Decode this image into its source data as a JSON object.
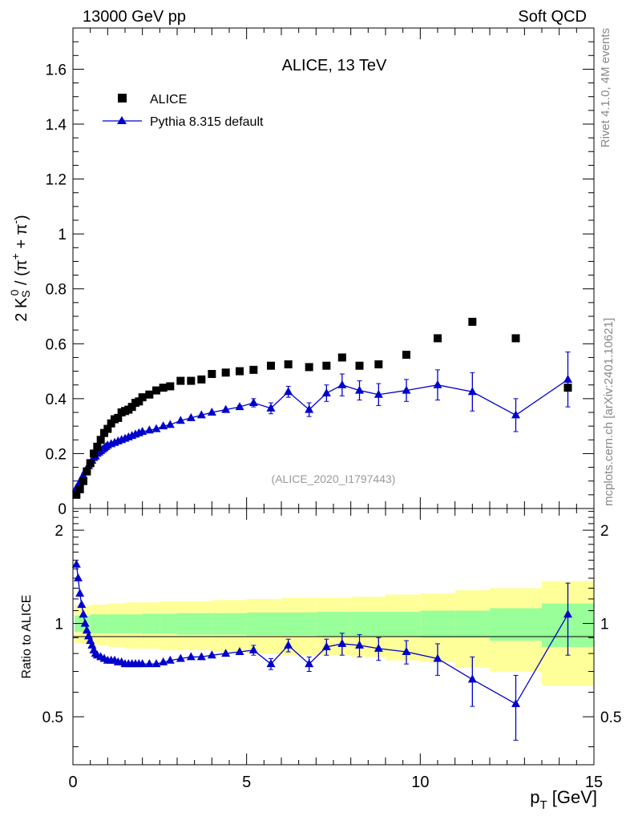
{
  "header": {
    "energy": "13000 GeV pp",
    "process": "Soft QCD"
  },
  "side_labels": {
    "rivet": "Rivet 4.1.0,  4M events",
    "mcplots": "mcplots.cern.ch [arXiv:2401.10621]"
  },
  "colors": {
    "data": "#000000",
    "mc": "#0000cc",
    "band_inner": "#99ff99",
    "band_outer": "#ffff99",
    "ref_label": "#999999"
  },
  "chart_data": [
    {
      "type": "scatter",
      "panel": "main",
      "title": "ALICE, 13 TeV",
      "ylabel": "2 K_S^0 / (π^+ + π^-)",
      "ylabel_parts": {
        "num": "2 K",
        "sub": "S",
        "sup": "0",
        "mid": " / (π",
        "pi_plus": "+",
        "plus": " + π",
        "pi_minus": "-",
        "close": ")"
      },
      "analysis_label": "(ALICE_2020_I1797443)",
      "xlim": [
        0,
        15
      ],
      "ylim": [
        0,
        1.75
      ],
      "y_ticks": [
        0,
        0.2,
        0.4,
        0.6,
        0.8,
        1,
        1.2,
        1.4,
        1.6
      ],
      "y_tick_labels": [
        "0",
        "0.2",
        "0.4",
        "0.6",
        "0.8",
        "1",
        "1.2",
        "1.4",
        "1.6"
      ],
      "legend": {
        "position": "top-left",
        "entries": [
          {
            "label": "ALICE",
            "marker": "square"
          },
          {
            "label": "Pythia 8.315 default",
            "marker": "triangle-line"
          }
        ]
      },
      "series": [
        {
          "name": "ALICE",
          "x": [
            0.1,
            0.2,
            0.3,
            0.4,
            0.5,
            0.6,
            0.7,
            0.8,
            0.9,
            1.0,
            1.1,
            1.2,
            1.3,
            1.4,
            1.5,
            1.6,
            1.7,
            1.8,
            1.9,
            2.0,
            2.2,
            2.4,
            2.6,
            2.8,
            3.1,
            3.4,
            3.7,
            4.0,
            4.4,
            4.8,
            5.2,
            5.7,
            6.2,
            6.8,
            7.3,
            7.75,
            8.25,
            8.8,
            9.6,
            10.5,
            11.5,
            12.75,
            14.25
          ],
          "y": [
            0.05,
            0.07,
            0.1,
            0.135,
            0.165,
            0.2,
            0.225,
            0.25,
            0.275,
            0.29,
            0.31,
            0.325,
            0.33,
            0.35,
            0.355,
            0.36,
            0.37,
            0.385,
            0.39,
            0.405,
            0.415,
            0.43,
            0.44,
            0.445,
            0.465,
            0.465,
            0.47,
            0.49,
            0.495,
            0.5,
            0.505,
            0.52,
            0.525,
            0.515,
            0.52,
            0.55,
            0.52,
            0.525,
            0.56,
            0.62,
            0.68,
            0.62,
            0.44
          ]
        },
        {
          "name": "Pythia 8.315 default",
          "x": [
            0.1,
            0.15,
            0.2,
            0.25,
            0.3,
            0.35,
            0.4,
            0.45,
            0.5,
            0.55,
            0.6,
            0.65,
            0.7,
            0.75,
            0.8,
            0.85,
            0.9,
            0.95,
            1.0,
            1.1,
            1.2,
            1.3,
            1.4,
            1.5,
            1.6,
            1.7,
            1.8,
            1.9,
            2.0,
            2.2,
            2.4,
            2.6,
            2.8,
            3.1,
            3.4,
            3.7,
            4.0,
            4.4,
            4.8,
            5.2,
            5.7,
            6.2,
            6.8,
            7.3,
            7.75,
            8.25,
            8.8,
            9.6,
            10.5,
            11.5,
            12.75,
            14.25
          ],
          "y": [
            0.075,
            0.085,
            0.095,
            0.11,
            0.12,
            0.135,
            0.145,
            0.155,
            0.165,
            0.175,
            0.185,
            0.19,
            0.2,
            0.205,
            0.21,
            0.215,
            0.22,
            0.225,
            0.23,
            0.235,
            0.24,
            0.245,
            0.25,
            0.255,
            0.26,
            0.265,
            0.27,
            0.275,
            0.28,
            0.285,
            0.29,
            0.3,
            0.305,
            0.32,
            0.33,
            0.34,
            0.35,
            0.36,
            0.37,
            0.385,
            0.365,
            0.425,
            0.36,
            0.42,
            0.45,
            0.43,
            0.415,
            0.43,
            0.45,
            0.425,
            0.34,
            0.47
          ],
          "err": [
            0,
            0,
            0,
            0,
            0,
            0,
            0,
            0,
            0,
            0,
            0,
            0,
            0,
            0,
            0,
            0,
            0,
            0,
            0,
            0,
            0,
            0,
            0,
            0,
            0,
            0,
            0,
            0,
            0,
            0,
            0,
            0,
            0,
            0,
            0,
            0,
            0,
            0,
            0.005,
            0.015,
            0.02,
            0.02,
            0.025,
            0.03,
            0.04,
            0.035,
            0.04,
            0.04,
            0.055,
            0.07,
            0.06,
            0.1
          ]
        }
      ]
    },
    {
      "type": "line",
      "panel": "ratio",
      "ylabel": "Ratio to ALICE",
      "xlabel": "p_T [GeV]",
      "xlabel_parts": {
        "p": "p",
        "sub": "T",
        "unit": " [GeV]"
      },
      "xlim": [
        0,
        15
      ],
      "ylim": [
        0.35,
        2.35
      ],
      "x_ticks": [
        0,
        5,
        10,
        15
      ],
      "x_tick_labels": [
        "0",
        "5",
        "10",
        "15"
      ],
      "y_ticks": [
        0.5,
        1,
        2
      ],
      "y_tick_labels": [
        "0.5",
        "1",
        "2"
      ],
      "bands": {
        "edges": [
          0.05,
          0.5,
          1.0,
          1.5,
          2.0,
          2.5,
          3.0,
          4.0,
          5.0,
          6.0,
          7.0,
          8.0,
          9.0,
          10.0,
          11.0,
          12.0,
          13.5,
          15.0
        ],
        "inner": [
          0.06,
          0.07,
          0.07,
          0.07,
          0.075,
          0.075,
          0.08,
          0.08,
          0.085,
          0.085,
          0.09,
          0.09,
          0.09,
          0.1,
          0.1,
          0.12,
          0.16
        ],
        "outer": [
          0.14,
          0.15,
          0.16,
          0.17,
          0.17,
          0.18,
          0.18,
          0.19,
          0.2,
          0.21,
          0.21,
          0.22,
          0.24,
          0.25,
          0.28,
          0.3,
          0.37
        ]
      },
      "series": [
        {
          "name": "Pythia 8.315 / ALICE",
          "x": [
            0.1,
            0.15,
            0.2,
            0.25,
            0.3,
            0.35,
            0.4,
            0.45,
            0.5,
            0.55,
            0.6,
            0.65,
            0.7,
            0.8,
            0.9,
            1.0,
            1.1,
            1.2,
            1.3,
            1.4,
            1.5,
            1.6,
            1.7,
            1.8,
            1.9,
            2.0,
            2.2,
            2.4,
            2.6,
            2.8,
            3.1,
            3.4,
            3.7,
            4.0,
            4.4,
            4.8,
            5.2,
            5.7,
            6.2,
            6.8,
            7.3,
            7.75,
            8.25,
            8.8,
            9.6,
            10.5,
            11.5,
            12.75,
            14.25
          ],
          "y": [
            1.55,
            1.4,
            1.25,
            1.15,
            1.07,
            1.0,
            0.95,
            0.91,
            0.88,
            0.85,
            0.82,
            0.8,
            0.79,
            0.78,
            0.77,
            0.76,
            0.76,
            0.76,
            0.75,
            0.75,
            0.74,
            0.74,
            0.74,
            0.74,
            0.74,
            0.74,
            0.74,
            0.74,
            0.75,
            0.76,
            0.77,
            0.78,
            0.78,
            0.79,
            0.8,
            0.81,
            0.82,
            0.74,
            0.85,
            0.74,
            0.84,
            0.86,
            0.85,
            0.83,
            0.81,
            0.77,
            0.66,
            0.55,
            1.07
          ],
          "err": [
            0,
            0,
            0,
            0,
            0,
            0,
            0,
            0,
            0,
            0,
            0,
            0,
            0,
            0,
            0,
            0,
            0,
            0,
            0,
            0,
            0,
            0,
            0,
            0,
            0,
            0,
            0,
            0,
            0,
            0,
            0,
            0,
            0,
            0,
            0,
            0,
            0.03,
            0.03,
            0.04,
            0.04,
            0.05,
            0.07,
            0.07,
            0.07,
            0.07,
            0.09,
            0.12,
            0.13,
            0.28
          ]
        }
      ]
    }
  ]
}
